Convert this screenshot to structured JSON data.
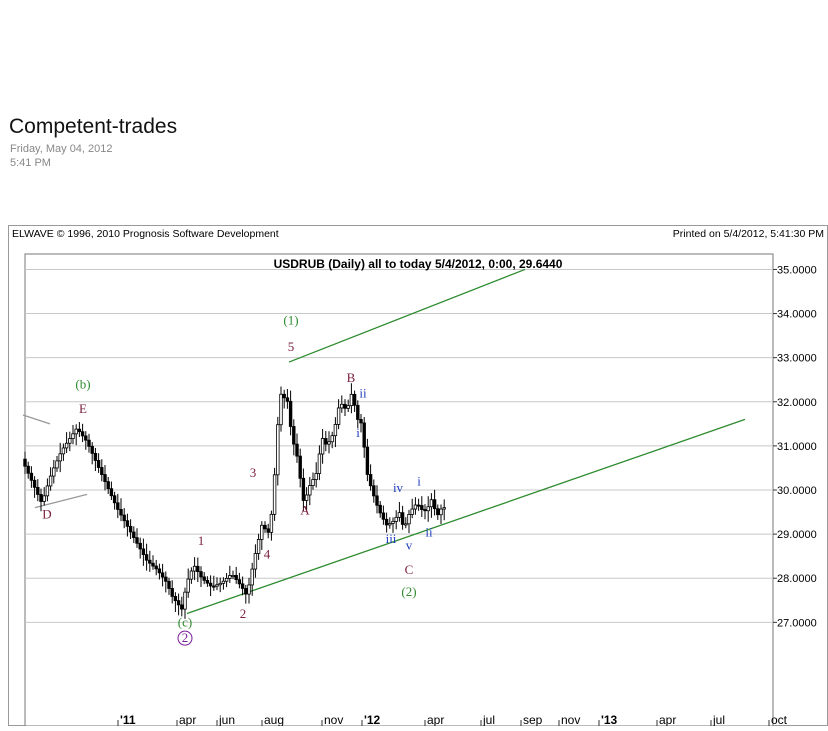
{
  "post": {
    "title": "Competent-trades",
    "date": "Friday, May 04, 2012",
    "time": "5:41 PM"
  },
  "chart_data": {
    "type": "candlestick",
    "header_left": "ELWAVE © 1996, 2010 Prognosis Software Development",
    "header_right": "Printed on 5/4/2012, 5:41:30 PM",
    "title": "USDRUB (Daily)  all to today  5/4/2012, 0:00, 29.6440",
    "ylim": [
      25.3,
      35.0
    ],
    "yticks": [
      "35.0000",
      "34.0000",
      "33.0000",
      "32.0000",
      "31.0000",
      "30.0000",
      "29.0000",
      "28.0000",
      "27.0000"
    ],
    "ytick_values": [
      35,
      34,
      33,
      32,
      31,
      30,
      29,
      28,
      27
    ],
    "xticks": [
      {
        "label": "'11",
        "t": 93
      },
      {
        "label": "apr",
        "t": 152
      },
      {
        "label": "jun",
        "t": 192
      },
      {
        "label": "aug",
        "t": 237
      },
      {
        "label": "nov",
        "t": 297
      },
      {
        "label": "'12",
        "t": 337
      },
      {
        "label": "apr",
        "t": 400
      },
      {
        "label": "jul",
        "t": 456
      },
      {
        "label": "sep",
        "t": 496
      },
      {
        "label": "nov",
        "t": 534
      },
      {
        "label": "'13",
        "t": 574
      },
      {
        "label": "apr",
        "t": 632
      },
      {
        "label": "jul",
        "t": 686
      },
      {
        "label": "oct",
        "t": 744
      }
    ],
    "path": [
      [
        0,
        30.7
      ],
      [
        10,
        30.2
      ],
      [
        20,
        29.7
      ],
      [
        30,
        30.4
      ],
      [
        40,
        30.9
      ],
      [
        55,
        31.4
      ],
      [
        65,
        31.1
      ],
      [
        75,
        30.6
      ],
      [
        85,
        30.1
      ],
      [
        95,
        29.6
      ],
      [
        105,
        29.2
      ],
      [
        115,
        28.8
      ],
      [
        125,
        28.4
      ],
      [
        135,
        28.2
      ],
      [
        145,
        27.9
      ],
      [
        150,
        27.6
      ],
      [
        160,
        27.3
      ],
      [
        165,
        27.9
      ],
      [
        172,
        28.3
      ],
      [
        180,
        28.0
      ],
      [
        190,
        27.8
      ],
      [
        200,
        27.9
      ],
      [
        210,
        28.1
      ],
      [
        220,
        27.8
      ],
      [
        225,
        27.6
      ],
      [
        233,
        28.5
      ],
      [
        240,
        29.2
      ],
      [
        248,
        29.0
      ],
      [
        253,
        30.4
      ],
      [
        258,
        32.2
      ],
      [
        266,
        32.0
      ],
      [
        270,
        31.2
      ],
      [
        275,
        30.8
      ],
      [
        282,
        29.7
      ],
      [
        288,
        30.1
      ],
      [
        295,
        30.4
      ],
      [
        300,
        31.2
      ],
      [
        305,
        31.0
      ],
      [
        312,
        31.3
      ],
      [
        318,
        32.0
      ],
      [
        325,
        31.8
      ],
      [
        330,
        32.2
      ],
      [
        336,
        31.6
      ],
      [
        340,
        31.5
      ],
      [
        345,
        30.4
      ],
      [
        350,
        30.0
      ],
      [
        356,
        29.6
      ],
      [
        360,
        29.4
      ],
      [
        365,
        29.2
      ],
      [
        372,
        29.3
      ],
      [
        378,
        29.5
      ],
      [
        382,
        29.1
      ],
      [
        388,
        29.5
      ],
      [
        395,
        29.7
      ],
      [
        402,
        29.5
      ],
      [
        406,
        29.6
      ],
      [
        410,
        29.8
      ],
      [
        415,
        29.4
      ],
      [
        420,
        29.6
      ]
    ],
    "channel_lines": [
      {
        "from": [
          264,
          32.9
        ],
        "to": [
          500,
          35.0
        ]
      },
      {
        "from": [
          162,
          27.2
        ],
        "to": [
          720,
          31.6
        ]
      },
      {
        "from": [
          -2,
          31.7
        ],
        "to": [
          25,
          31.5
        ]
      },
      {
        "from": [
          10,
          29.6
        ],
        "to": [
          62,
          29.9
        ]
      }
    ],
    "wave_labels": [
      {
        "text": "D",
        "t": 22,
        "v": 29.35,
        "color": "#7a1f3a"
      },
      {
        "text": "(b)",
        "t": 58,
        "v": 32.3,
        "color": "#2e8b2e"
      },
      {
        "text": "E",
        "t": 58,
        "v": 31.75,
        "color": "#7a1f3a"
      },
      {
        "text": "1",
        "t": 176,
        "v": 28.75,
        "color": "#7a1f3a"
      },
      {
        "text": "(c)",
        "t": 160,
        "v": 26.9,
        "color": "#2e8b2e"
      },
      {
        "text": "2",
        "t": 160,
        "v": 26.55,
        "color": "#7a1f3a",
        "circled": true
      },
      {
        "text": "2",
        "t": 218,
        "v": 27.1,
        "color": "#7a1f3a"
      },
      {
        "text": "4",
        "t": 242,
        "v": 28.45,
        "color": "#7a1f3a"
      },
      {
        "text": "3",
        "t": 228,
        "v": 30.3,
        "color": "#7a1f3a"
      },
      {
        "text": "(1)",
        "t": 266,
        "v": 33.75,
        "color": "#2e8b2e"
      },
      {
        "text": "5",
        "t": 266,
        "v": 33.15,
        "color": "#7a1f3a"
      },
      {
        "text": "A",
        "t": 280,
        "v": 29.45,
        "color": "#7a1f3a"
      },
      {
        "text": "B",
        "t": 326,
        "v": 32.45,
        "color": "#7a1f3a"
      },
      {
        "text": "ii",
        "t": 338,
        "v": 32.1,
        "color": "#1f3fbf"
      },
      {
        "text": "i",
        "t": 333,
        "v": 31.2,
        "color": "#1f3fbf"
      },
      {
        "text": "iii",
        "t": 366,
        "v": 28.8,
        "color": "#1f3fbf"
      },
      {
        "text": "iv",
        "t": 373,
        "v": 29.95,
        "color": "#1f3fbf"
      },
      {
        "text": "v",
        "t": 384,
        "v": 28.65,
        "color": "#1f3fbf"
      },
      {
        "text": "i",
        "t": 394,
        "v": 30.1,
        "color": "#1f3fbf"
      },
      {
        "text": "ii",
        "t": 404,
        "v": 28.95,
        "color": "#1f3fbf"
      },
      {
        "text": "C",
        "t": 384,
        "v": 28.1,
        "color": "#7a1f3a"
      },
      {
        "text": "(2)",
        "t": 384,
        "v": 27.6,
        "color": "#2e8b2e"
      }
    ]
  }
}
